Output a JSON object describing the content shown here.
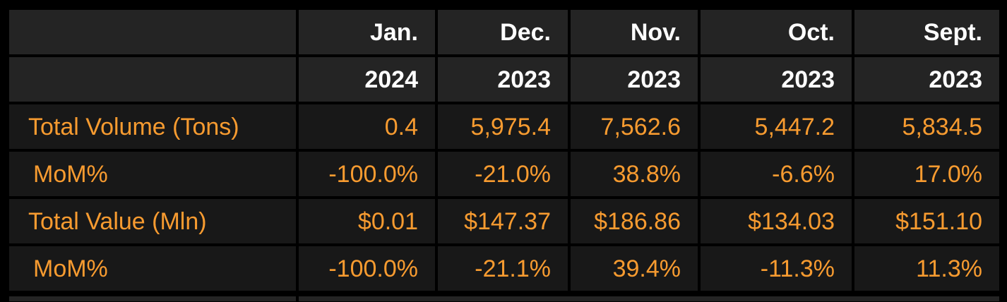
{
  "table": {
    "columns": [
      {
        "month": "Jan.",
        "year": "2024"
      },
      {
        "month": "Dec.",
        "year": "2023"
      },
      {
        "month": "Nov.",
        "year": "2023"
      },
      {
        "month": "Oct.",
        "year": "2023"
      },
      {
        "month": "Sept.",
        "year": "2023"
      }
    ],
    "rows": [
      {
        "label": "Total Volume (Tons)",
        "values": [
          "0.4",
          "5,975.4",
          "7,562.6",
          "5,447.2",
          "5,834.5"
        ]
      },
      {
        "label": "MoM%",
        "values": [
          "-100.0%",
          "-21.0%",
          "38.8%",
          "-6.6%",
          "17.0%"
        ]
      },
      {
        "label": "Total Value (Mln)",
        "values": [
          "$0.01",
          "$147.37",
          "$186.86",
          "$134.03",
          "$151.10"
        ]
      },
      {
        "label": "MoM%",
        "values": [
          "-100.0%",
          "-21.1%",
          "39.4%",
          "-11.3%",
          "11.3%"
        ]
      }
    ]
  },
  "colors": {
    "background": "#000000",
    "header_cell": "#242424",
    "data_cell": "#181818",
    "header_text": "#ffffff",
    "data_text": "#f79b30"
  }
}
